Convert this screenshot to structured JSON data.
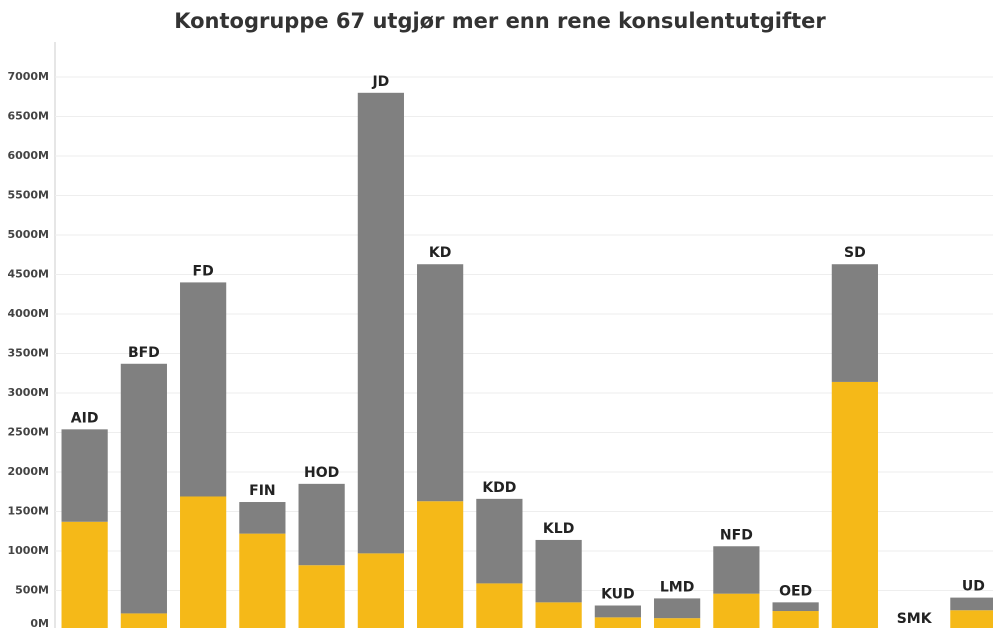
{
  "chart_data": {
    "type": "stacked_bar",
    "title": "Kontogruppe 67 utgjør mer enn rene konsulentutgifter",
    "categories": [
      "AID",
      "BFD",
      "FD",
      "FIN",
      "HOD",
      "JD",
      "KD",
      "KDD",
      "KLD",
      "KUD",
      "LMD",
      "NFD",
      "OED",
      "SD",
      "SMK",
      "UD"
    ],
    "series": [
      {
        "color": "#f5b918",
        "values": [
          1370,
          210,
          1690,
          1220,
          820,
          970,
          1630,
          590,
          350,
          160,
          150,
          460,
          240,
          3140,
          0,
          250
        ]
      },
      {
        "color": "#808080",
        "values": [
          1170,
          3160,
          2710,
          400,
          1030,
          5830,
          3000,
          1070,
          790,
          150,
          250,
          600,
          110,
          1490,
          0,
          160
        ]
      }
    ],
    "ylim": [
      0,
      7000
    ],
    "yticks": [
      {
        "value": 0,
        "label": "0M"
      },
      {
        "value": 500,
        "label": "500M"
      },
      {
        "value": 1000,
        "label": "1000M"
      },
      {
        "value": 1500,
        "label": "1500M"
      },
      {
        "value": 2000,
        "label": "2000M"
      },
      {
        "value": 2500,
        "label": "2500M"
      },
      {
        "value": 3000,
        "label": "3000M"
      },
      {
        "value": 3500,
        "label": "3500M"
      },
      {
        "value": 4000,
        "label": "4000M"
      },
      {
        "value": 4500,
        "label": "4500M"
      },
      {
        "value": 5000,
        "label": "5000M"
      },
      {
        "value": 5500,
        "label": "5500M"
      },
      {
        "value": 6000,
        "label": "6000M"
      },
      {
        "value": 6500,
        "label": "6500M"
      },
      {
        "value": 7000,
        "label": "7000M"
      }
    ],
    "grid": true
  }
}
